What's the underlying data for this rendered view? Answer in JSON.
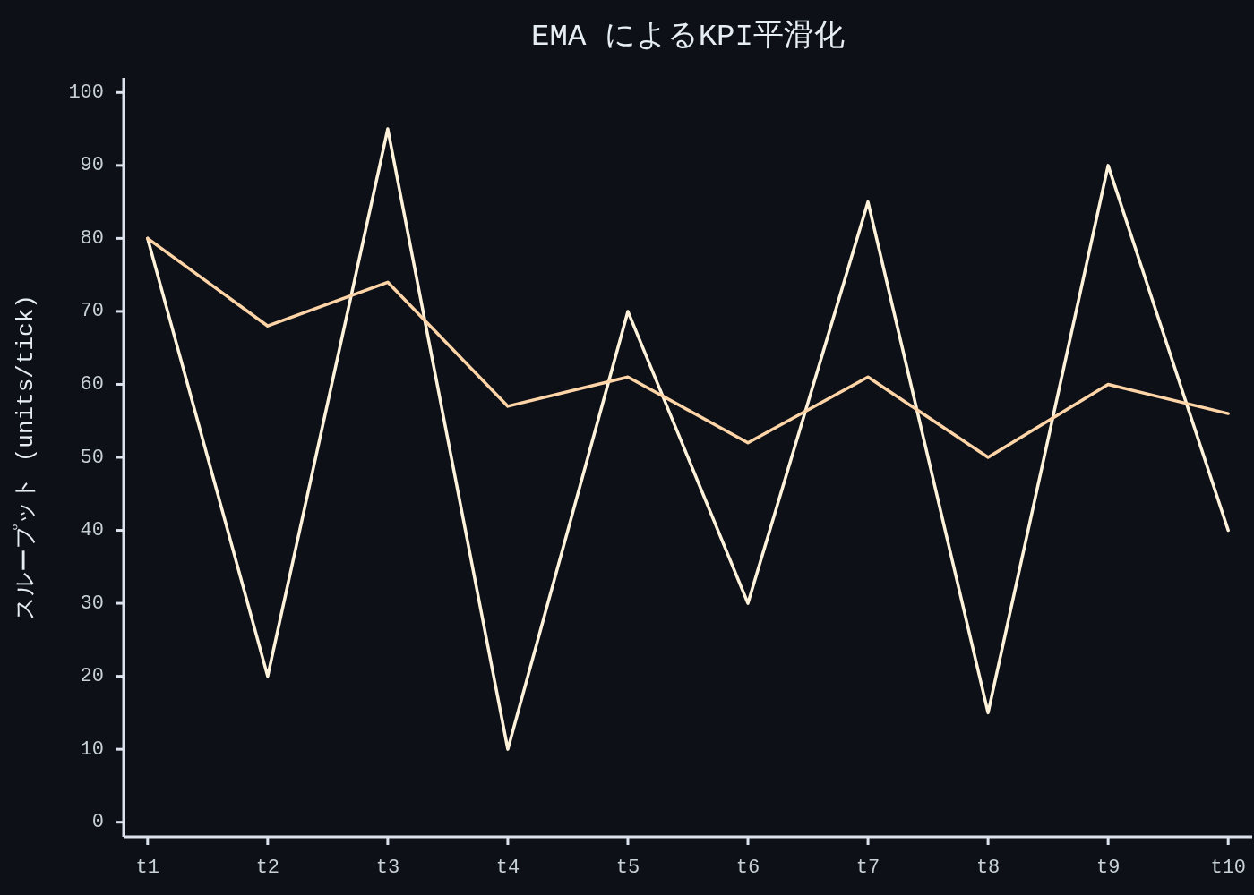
{
  "chart_data": {
    "type": "line",
    "title": "EMA によるKPI平滑化",
    "ylabel": "スループット (units/tick)",
    "categories": [
      "t1",
      "t2",
      "t3",
      "t4",
      "t5",
      "t6",
      "t7",
      "t8",
      "t9",
      "t10"
    ],
    "series": [
      {
        "color": "#fff3dc",
        "values": [
          80,
          20,
          95,
          10,
          70,
          30,
          85,
          15,
          90,
          40
        ]
      },
      {
        "color": "#ffd5a8",
        "values": [
          80,
          68,
          74,
          57,
          61,
          52,
          61,
          50,
          60,
          56
        ]
      }
    ],
    "ylim": [
      -2,
      102
    ],
    "yticks": [
      0,
      10,
      20,
      30,
      40,
      50,
      60,
      70,
      80,
      90,
      100
    ],
    "grid": false,
    "marker": "none",
    "line_style": "solid"
  }
}
